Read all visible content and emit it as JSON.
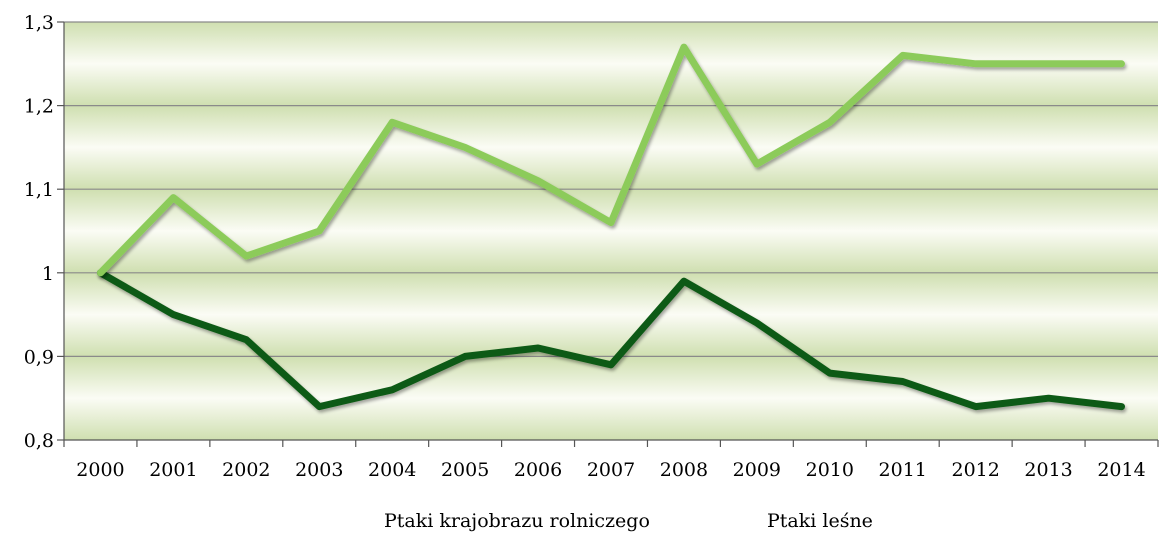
{
  "chart_data": {
    "type": "line",
    "title": "",
    "xlabel": "",
    "ylabel": "",
    "categories": [
      "2000",
      "2001",
      "2002",
      "2003",
      "2004",
      "2005",
      "2006",
      "2007",
      "2008",
      "2009",
      "2010",
      "2011",
      "2012",
      "2013",
      "2014"
    ],
    "ylim": [
      0.8,
      1.3
    ],
    "yticks": [
      0.8,
      0.9,
      1.0,
      1.1,
      1.2,
      1.3
    ],
    "ytick_labels": [
      "0,8",
      "0,9",
      "1",
      "1,1",
      "1,2",
      "1,3"
    ],
    "grid": true,
    "legend_position": "bottom",
    "series": [
      {
        "name": "Ptaki krajobrazu rolniczego",
        "color": "#0f5a14",
        "values": [
          1.0,
          0.95,
          0.92,
          0.84,
          0.86,
          0.9,
          0.91,
          0.89,
          0.99,
          0.94,
          0.88,
          0.87,
          0.84,
          0.85,
          0.84
        ]
      },
      {
        "name": "Ptaki leśne",
        "color": "#8ccb5a",
        "values": [
          1.0,
          1.09,
          1.02,
          1.05,
          1.18,
          1.15,
          1.11,
          1.06,
          1.27,
          1.13,
          1.18,
          1.26,
          1.25,
          1.25,
          1.25
        ]
      }
    ]
  }
}
